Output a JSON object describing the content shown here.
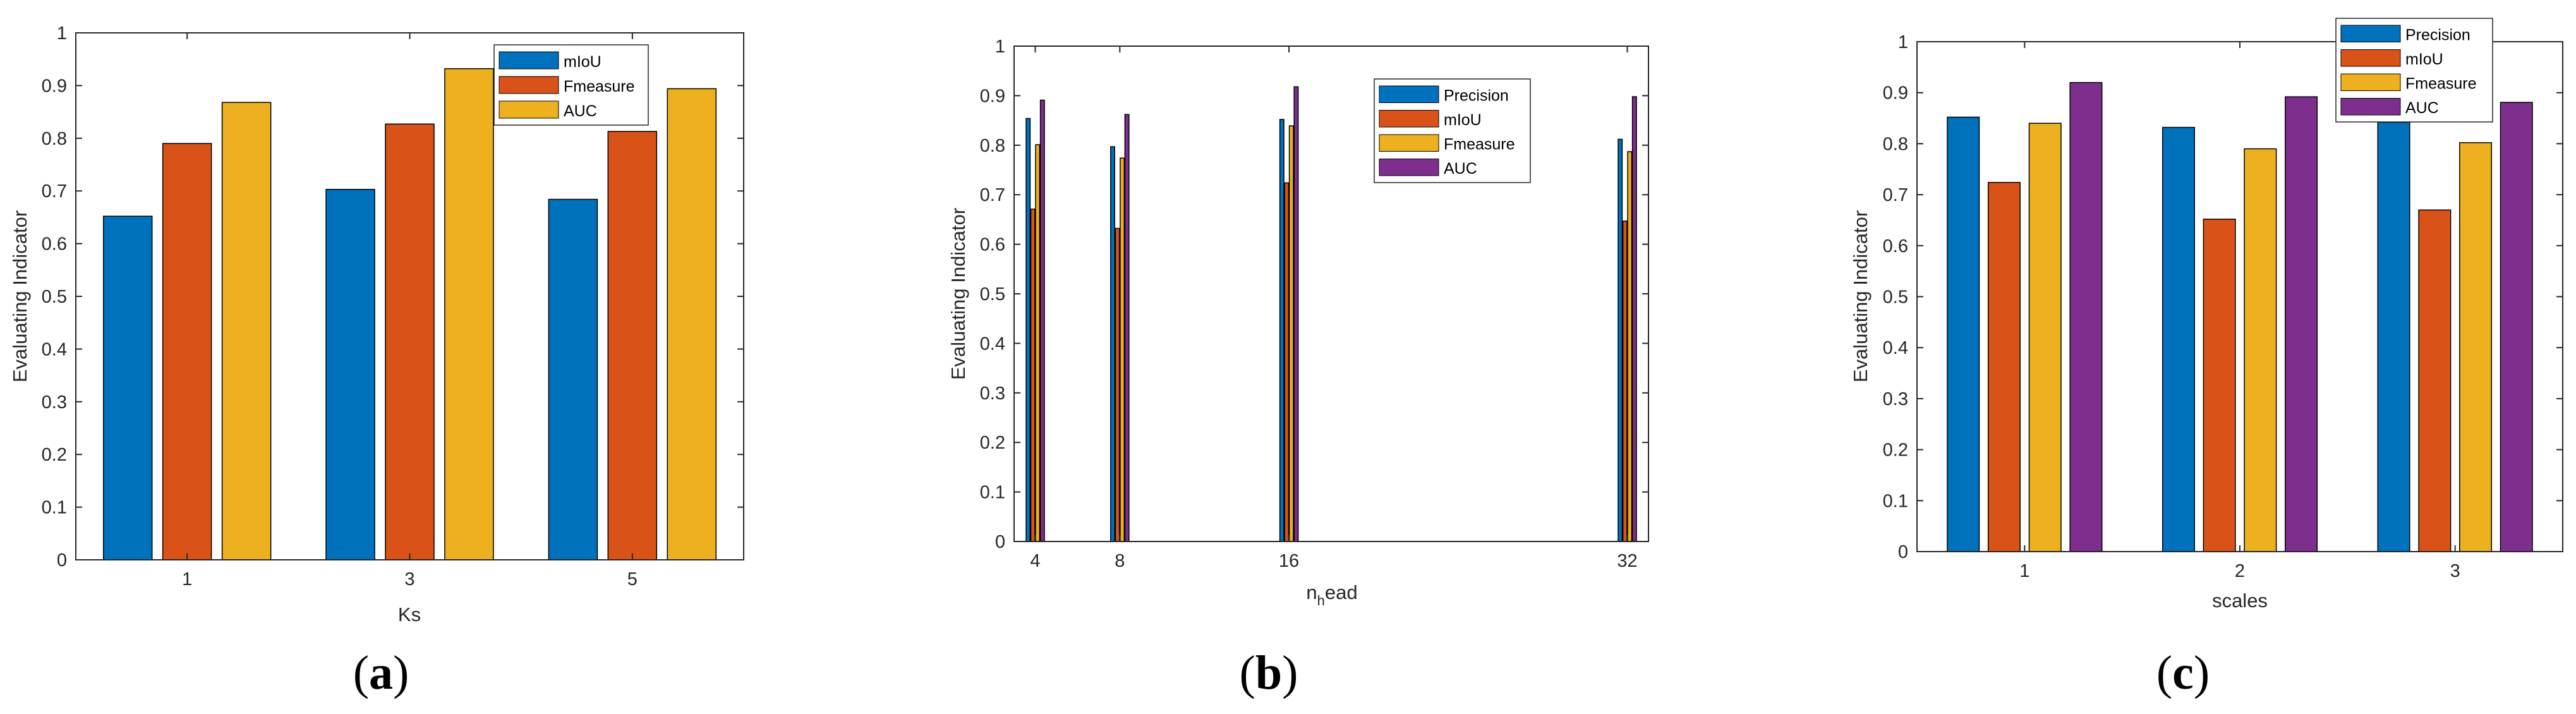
{
  "colors": {
    "blue": "#0072BD",
    "orange": "#D95319",
    "yellow": "#EDB120",
    "purple": "#7E2F8E"
  },
  "chart_data": [
    {
      "type": "bar",
      "caption": "a",
      "categories": [
        "1",
        "3",
        "5"
      ],
      "x": [
        1,
        3,
        5
      ],
      "xlabel": "Ks",
      "ylabel": "Evaluating Indicator",
      "ylim": [
        0,
        1
      ],
      "yticks": [
        "0",
        "0.1",
        "0.2",
        "0.3",
        "0.4",
        "0.5",
        "0.6",
        "0.7",
        "0.8",
        "0.9",
        "1"
      ],
      "legend_position": "top-right",
      "series": [
        {
          "name": "mIoU",
          "color": "#0072BD",
          "values": [
            0.652,
            0.703,
            0.684
          ]
        },
        {
          "name": "Fmeasure",
          "color": "#D95319",
          "values": [
            0.79,
            0.827,
            0.813
          ]
        },
        {
          "name": "AUC",
          "color": "#EDB120",
          "values": [
            0.868,
            0.932,
            0.894
          ]
        }
      ]
    },
    {
      "type": "bar",
      "caption": "b",
      "categories": [
        "4",
        "8",
        "16",
        "32"
      ],
      "x": [
        4,
        8,
        16,
        32
      ],
      "xlabel_main": "n",
      "xlabel_sub": "h",
      "xlabel_rest": "ead",
      "ylabel": "Evaluating Indicator",
      "ylim": [
        0,
        1
      ],
      "yticks": [
        "0",
        "0.1",
        "0.2",
        "0.3",
        "0.4",
        "0.5",
        "0.6",
        "0.7",
        "0.8",
        "0.9",
        "1"
      ],
      "legend_position": "top-right",
      "series": [
        {
          "name": "Precision",
          "color": "#0072BD",
          "values": [
            0.854,
            0.797,
            0.852,
            0.812
          ]
        },
        {
          "name": "mIoU",
          "color": "#D95319",
          "values": [
            0.671,
            0.632,
            0.724,
            0.647
          ]
        },
        {
          "name": "Fmeasure",
          "color": "#EDB120",
          "values": [
            0.801,
            0.774,
            0.839,
            0.787
          ]
        },
        {
          "name": "AUC",
          "color": "#7E2F8E",
          "values": [
            0.891,
            0.862,
            0.918,
            0.898
          ]
        }
      ]
    },
    {
      "type": "bar",
      "caption": "c",
      "categories": [
        "1",
        "2",
        "3"
      ],
      "x": [
        1,
        2,
        3
      ],
      "xlabel": "scales",
      "ylabel": "Evaluating Indicator",
      "ylim": [
        0,
        1
      ],
      "yticks": [
        "0",
        "0.1",
        "0.2",
        "0.3",
        "0.4",
        "0.5",
        "0.6",
        "0.7",
        "0.8",
        "0.9",
        "1"
      ],
      "legend_position": "top-right",
      "series": [
        {
          "name": "Precision",
          "color": "#0072BD",
          "values": [
            0.852,
            0.832,
            0.842
          ]
        },
        {
          "name": "mIoU",
          "color": "#D95319",
          "values": [
            0.724,
            0.652,
            0.67
          ]
        },
        {
          "name": "Fmeasure",
          "color": "#EDB120",
          "values": [
            0.84,
            0.79,
            0.802
          ]
        },
        {
          "name": "AUC",
          "color": "#7E2F8E",
          "values": [
            0.92,
            0.892,
            0.881
          ]
        }
      ]
    }
  ]
}
